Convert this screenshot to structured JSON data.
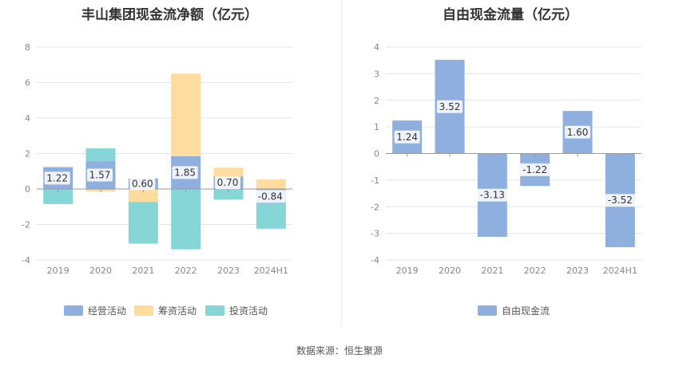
{
  "source_text": "数据来源：恒生聚源",
  "chart_data": [
    {
      "type": "bar",
      "stacked": true,
      "title": "丰山集团现金流净额（亿元）",
      "categories": [
        "2019",
        "2020",
        "2021",
        "2022",
        "2023",
        "2024H1"
      ],
      "ylim": [
        -4,
        8
      ],
      "yticks": [
        -4,
        -2,
        0,
        2,
        4,
        6,
        8
      ],
      "grid": true,
      "legend_position": "bottom",
      "series": [
        {
          "name": "经营活动",
          "color": "#8fb0de",
          "values": [
            1.22,
            1.57,
            0.6,
            1.85,
            0.7,
            -0.84
          ]
        },
        {
          "name": "筹资活动",
          "color": "#fedb9e",
          "values": [
            0.05,
            -0.15,
            -0.73,
            4.65,
            0.5,
            0.55
          ]
        },
        {
          "name": "投资活动",
          "color": "#86d6d8",
          "values": [
            -0.85,
            0.72,
            -2.35,
            -3.4,
            -0.6,
            -1.4
          ]
        }
      ],
      "data_labels": [
        "1.22",
        "1.57",
        "0.60",
        "1.85",
        "0.70",
        "-0.84"
      ]
    },
    {
      "type": "bar",
      "title": "自由现金流量（亿元）",
      "categories": [
        "2019",
        "2020",
        "2021",
        "2022",
        "2023",
        "2024H1"
      ],
      "ylim": [
        -4,
        4
      ],
      "yticks": [
        -4,
        -3,
        -2,
        -1,
        0,
        1,
        2,
        3,
        4
      ],
      "grid": true,
      "legend_position": "bottom",
      "series": [
        {
          "name": "自由现金流",
          "color": "#8fb0de",
          "values": [
            1.24,
            3.52,
            -3.13,
            -1.22,
            1.6,
            -3.52
          ]
        }
      ],
      "data_labels": [
        "1.24",
        "3.52",
        "-3.13",
        "-1.22",
        "1.60",
        "-3.52"
      ]
    }
  ]
}
